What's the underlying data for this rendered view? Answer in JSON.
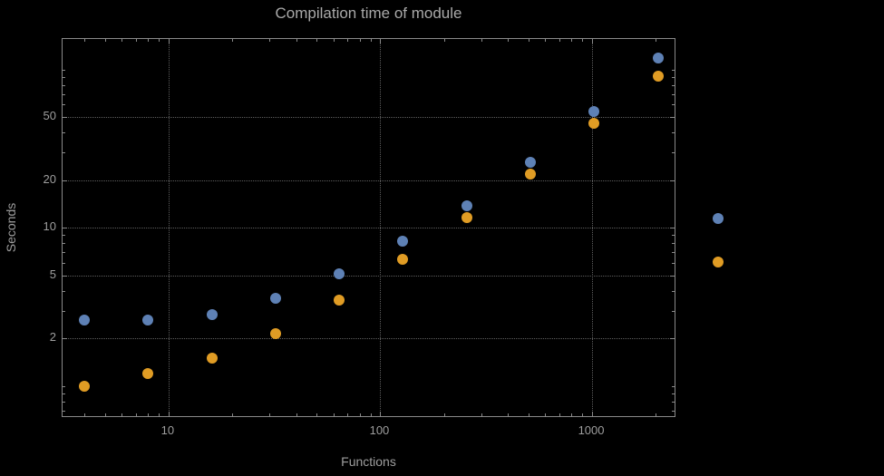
{
  "chart_data": {
    "type": "scatter",
    "title": "Compilation time of module",
    "xlabel": "Functions",
    "ylabel": "Seconds",
    "x_scale": "log",
    "y_scale": "log",
    "xlim": [
      3.16,
      2500
    ],
    "ylim": [
      0.63,
      156
    ],
    "grid": "dotted",
    "x_ticks": [
      10,
      100,
      1000
    ],
    "x_tick_labels": [
      "10",
      "100",
      "1000"
    ],
    "y_ticks": [
      2,
      5,
      10,
      20,
      50
    ],
    "y_tick_labels": [
      "2",
      "5",
      "10",
      "20",
      "50"
    ],
    "x": [
      4,
      8,
      16,
      32,
      64,
      128,
      256,
      512,
      1024,
      2048
    ],
    "series": [
      {
        "name": "series-blue",
        "color": "#5e81b5",
        "values": [
          2.6,
          2.6,
          2.85,
          3.6,
          5.1,
          8.2,
          13.7,
          26,
          54,
          118
        ]
      },
      {
        "name": "series-orange",
        "color": "#e09c24",
        "values": [
          1.0,
          1.2,
          1.5,
          2.15,
          3.5,
          6.3,
          11.6,
          22,
          46,
          91
        ]
      }
    ],
    "legend": {
      "position": "right-outside",
      "markers": [
        {
          "series": "series-blue",
          "color": "#5e81b5"
        },
        {
          "series": "series-orange",
          "color": "#e09c24"
        }
      ]
    },
    "colors": {
      "background": "#000000",
      "frame": "#8a8a8a",
      "grid": "#5e5e5e",
      "tick_text": "#9e9e9e",
      "title_text": "#a9a9a9"
    }
  }
}
